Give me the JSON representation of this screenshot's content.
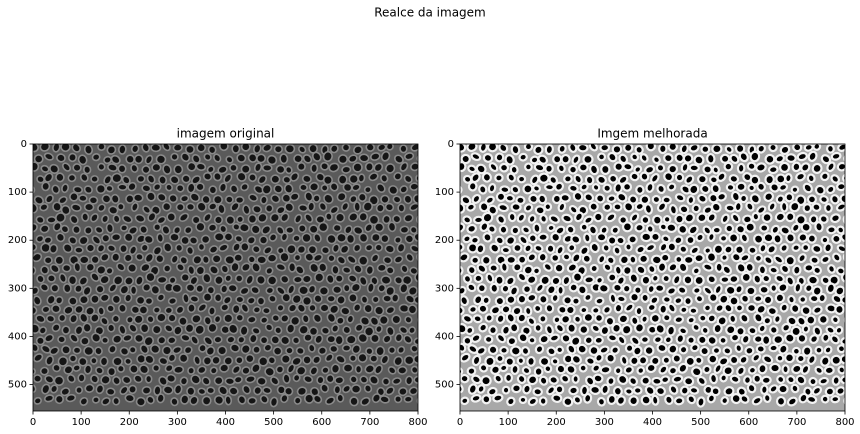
{
  "title": "Realce da imagem",
  "chart_data": [
    {
      "type": "image",
      "title": "imagem original",
      "variant": "original",
      "xlim": [
        0,
        800
      ],
      "ylim": [
        555,
        0
      ],
      "xticks": [
        0,
        100,
        200,
        300,
        400,
        500,
        600,
        700,
        800
      ],
      "yticks": [
        0,
        100,
        200,
        300,
        400,
        500
      ]
    },
    {
      "type": "image",
      "title": "Imgem melhorada",
      "variant": "enhanced",
      "xlim": [
        0,
        800
      ],
      "ylim": [
        555,
        0
      ],
      "xticks": [
        0,
        100,
        200,
        300,
        400,
        500,
        600,
        700,
        800
      ],
      "yticks": [
        0,
        100,
        200,
        300,
        400,
        500
      ]
    }
  ]
}
